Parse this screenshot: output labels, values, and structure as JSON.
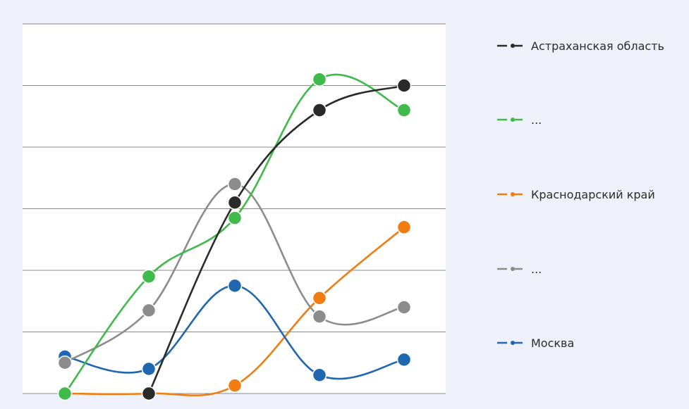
{
  "chart_data": {
    "type": "line",
    "title": "",
    "xlabel": "",
    "ylabel": "",
    "x": [
      1,
      2,
      3,
      4,
      5
    ],
    "ylim": [
      0,
      6
    ],
    "grid": true,
    "legend_position": "right",
    "series": [
      {
        "name": "Астраханская область",
        "color": "#2a2a2a",
        "values": [
          null,
          0.0,
          3.1,
          4.6,
          5.0
        ]
      },
      {
        "name": "...",
        "color": "#3fba4b",
        "values": [
          0.0,
          1.9,
          2.85,
          5.1,
          4.6
        ]
      },
      {
        "name": "Краснодарский край",
        "color": "#f07c12",
        "values": [
          0.0,
          0.0,
          0.13,
          1.55,
          2.7
        ]
      },
      {
        "name": "...",
        "color": "#8c8c8c",
        "values": [
          0.5,
          1.35,
          3.4,
          1.25,
          1.4
        ]
      },
      {
        "name": "Москва",
        "color": "#1f67b0",
        "values": [
          0.6,
          0.4,
          1.75,
          0.3,
          0.55
        ]
      }
    ]
  }
}
